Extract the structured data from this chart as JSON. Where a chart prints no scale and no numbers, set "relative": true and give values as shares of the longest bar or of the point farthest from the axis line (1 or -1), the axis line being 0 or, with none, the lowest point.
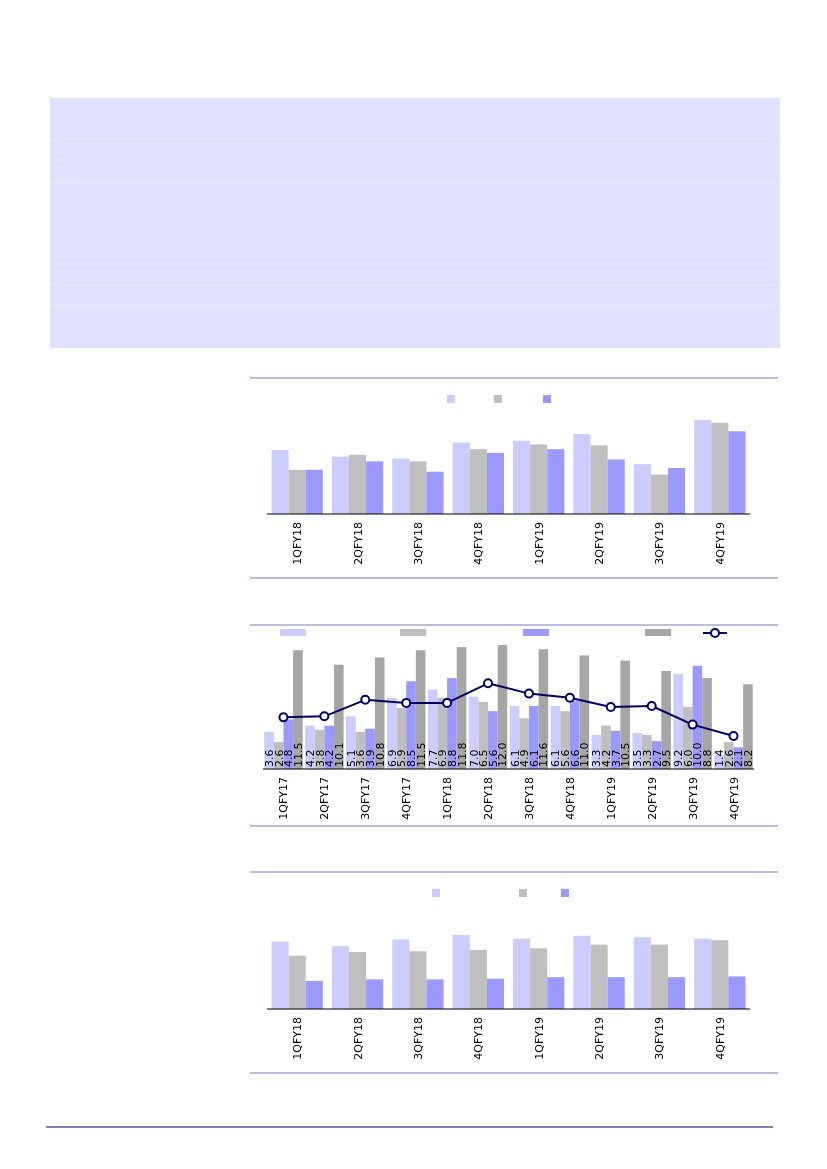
{
  "chart_data": [
    {
      "type": "bar",
      "relative": true,
      "categories": [
        "1QFY18",
        "2QFY18",
        "3QFY18",
        "4QFY18",
        "1QFY19",
        "2QFY19",
        "3QFY19",
        "4QFY19"
      ],
      "series": [
        {
          "color": "#ccccff",
          "values": [
            0.68,
            0.61,
            0.59,
            0.76,
            0.78,
            0.85,
            0.53,
            1
          ]
        },
        {
          "color": "#bfbfbf",
          "values": [
            0.47,
            0.63,
            0.56,
            0.69,
            0.74,
            0.73,
            0.42,
            0.97
          ]
        },
        {
          "color": "#9999ff",
          "values": [
            0.47,
            0.56,
            0.45,
            0.65,
            0.69,
            0.58,
            0.49,
            0.88
          ]
        }
      ]
    },
    {
      "type": "bar",
      "tick_labels": "x",
      "ylim": [
        0,
        12.2
      ],
      "marker": "circle",
      "categories": [
        "1QFY17",
        "2QFY17",
        "3QFY17",
        "4QFY17",
        "1QFY18",
        "2QFY18",
        "3QFY18",
        "4QFY18",
        "1QFY19",
        "2QFY19",
        "3QFY19",
        "4QFY19"
      ],
      "series": [
        {
          "color": "#ccccff",
          "values": [
            3.6,
            4.2,
            5.1,
            6.9,
            7.7,
            7.0,
            6.1,
            6.1,
            3.3,
            3.5,
            9.2,
            1.4
          ],
          "value_labels": [
            "3.6",
            "4.2",
            "5.1",
            "6.9",
            "7.7",
            "7.0",
            "6.1",
            "6.1",
            "3.3",
            "3.5",
            "9.2",
            "1.4"
          ]
        },
        {
          "color": "#bfbfbf",
          "values": [
            2.6,
            3.8,
            3.6,
            5.9,
            6.9,
            6.5,
            4.9,
            5.6,
            4.2,
            3.3,
            6.0,
            2.6
          ],
          "value_labels": [
            "2.6",
            "3.8",
            "3.6",
            "5.9",
            "6.9",
            "6.5",
            "4.9",
            "5.6",
            "4.2",
            "3.3",
            "6.0",
            "2.6"
          ]
        },
        {
          "color": "#9999ff",
          "values": [
            4.8,
            4.2,
            3.9,
            8.5,
            8.8,
            5.6,
            6.1,
            6.6,
            3.7,
            2.7,
            10.0,
            2.1
          ],
          "value_labels": [
            "4.8",
            "4.2",
            "3.9",
            "8.5",
            "8.8",
            "5.6",
            "6.1",
            "6.6",
            "3.7",
            "2.7",
            "10.0",
            "2.1"
          ]
        },
        {
          "color": "#a6a6a6",
          "values": [
            11.5,
            10.1,
            10.8,
            11.5,
            11.8,
            12.0,
            11.6,
            11.0,
            10.5,
            9.5,
            8.8,
            8.2
          ],
          "value_labels": [
            "11.5",
            "10.1",
            "10.8",
            "11.5",
            "11.8",
            "12.0",
            "11.6",
            "11.0",
            "10.5",
            "9.5",
            "8.8",
            "8.2"
          ]
        },
        {
          "type": "line",
          "color": "#000066",
          "values": [
            5.0,
            5.1,
            6.7,
            6.4,
            6.4,
            8.3,
            7.3,
            6.9,
            6.0,
            6.1,
            4.3,
            3.2
          ]
        }
      ]
    },
    {
      "type": "bar",
      "relative": true,
      "categories": [
        "1QFY18",
        "2QFY18",
        "3QFY18",
        "4QFY18",
        "1QFY19",
        "2QFY19",
        "3QFY19",
        "4QFY19"
      ],
      "series": [
        {
          "color": "#ccccff",
          "values": [
            0.91,
            0.85,
            0.94,
            1,
            0.95,
            0.99,
            0.97,
            0.95
          ]
        },
        {
          "color": "#bfbfbf",
          "values": [
            0.72,
            0.77,
            0.78,
            0.8,
            0.82,
            0.87,
            0.87,
            0.93
          ]
        },
        {
          "color": "#9999ff",
          "values": [
            0.38,
            0.4,
            0.4,
            0.41,
            0.43,
            0.43,
            0.43,
            0.44
          ]
        }
      ]
    }
  ]
}
